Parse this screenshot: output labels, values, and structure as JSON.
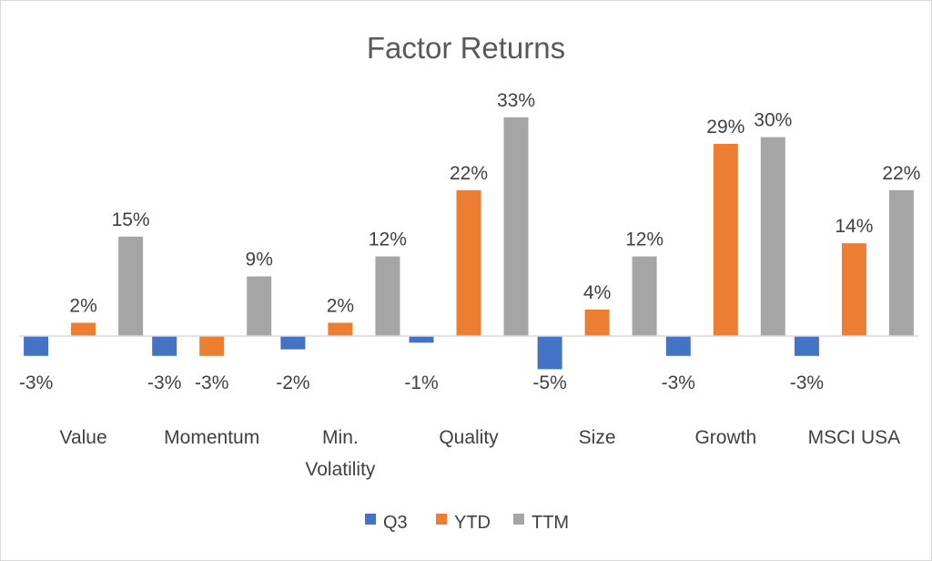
{
  "chart_data": {
    "type": "bar",
    "title": "Factor Returns",
    "categories": [
      "Value",
      "Momentum",
      "Min. Volatility",
      "Quality",
      "Size",
      "Growth",
      "MSCI USA"
    ],
    "category_lines": [
      [
        "Value"
      ],
      [
        "Momentum"
      ],
      [
        "Min.",
        "Volatility"
      ],
      [
        "Quality"
      ],
      [
        "Size"
      ],
      [
        "Growth"
      ],
      [
        "MSCI USA"
      ]
    ],
    "series": [
      {
        "name": "Q3",
        "color": "#4472C4",
        "values": [
          -3,
          -3,
          -2,
          -1,
          -5,
          -3,
          -3
        ]
      },
      {
        "name": "YTD",
        "color": "#ED7D31",
        "values": [
          2,
          -3,
          2,
          22,
          4,
          29,
          14
        ]
      },
      {
        "name": "TTM",
        "color": "#A5A5A5",
        "values": [
          15,
          9,
          12,
          33,
          12,
          30,
          22
        ]
      }
    ],
    "label_suffix": "%",
    "ylim": [
      -6,
      35
    ],
    "grid": false,
    "legend_position": "bottom"
  }
}
